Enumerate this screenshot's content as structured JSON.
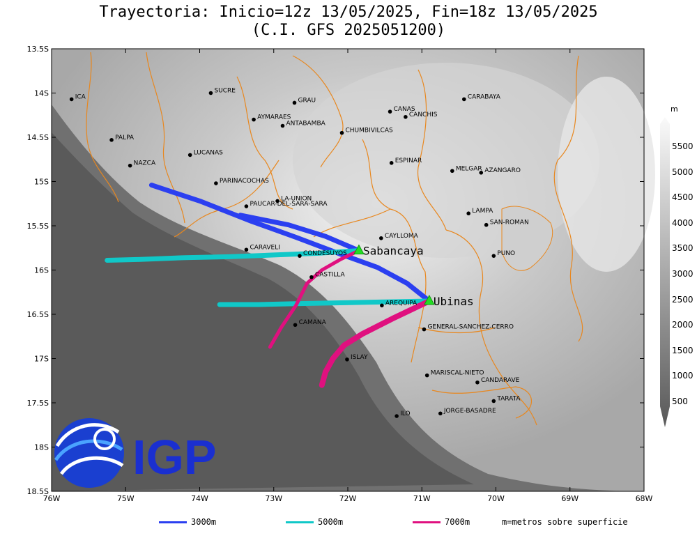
{
  "title_line1": "Trayectoria: Inicio=12z 13/05/2025, Fin=18z 13/05/2025",
  "title_line2": "(C.I. GFS 2025051200)",
  "logo_text": "IGP",
  "units_label": "m",
  "colorbar_labels": [
    "5500",
    "5000",
    "4500",
    "4000",
    "3500",
    "3000",
    "2500",
    "2000",
    "1500",
    "1000",
    "500"
  ],
  "lat_ticks": [
    "13.5S",
    "14S",
    "14.5S",
    "15S",
    "15.5S",
    "16S",
    "16.5S",
    "17S",
    "17.5S",
    "18S",
    "18.5S"
  ],
  "lon_ticks": [
    "76W",
    "75W",
    "74W",
    "73W",
    "72W",
    "71W",
    "70W",
    "69W",
    "68W"
  ],
  "places": [
    {
      "name": "ICA",
      "lon": -75.73,
      "lat": -14.07
    },
    {
      "name": "SUCRE",
      "lon": -73.85,
      "lat": -14.0
    },
    {
      "name": "GRAU",
      "lon": -72.72,
      "lat": -14.11
    },
    {
      "name": "AYMARAES",
      "lon": -73.27,
      "lat": -14.3
    },
    {
      "name": "ANTABAMBA",
      "lon": -72.88,
      "lat": -14.37
    },
    {
      "name": "CANAS",
      "lon": -71.43,
      "lat": -14.21
    },
    {
      "name": "CANCHIS",
      "lon": -71.22,
      "lat": -14.27
    },
    {
      "name": "CARABAYA",
      "lon": -70.43,
      "lat": -14.07
    },
    {
      "name": "CHUMBIVILCAS",
      "lon": -72.08,
      "lat": -14.45
    },
    {
      "name": "PALPA",
      "lon": -75.19,
      "lat": -14.53
    },
    {
      "name": "LUCANAS",
      "lon": -74.13,
      "lat": -14.7
    },
    {
      "name": "NAZCA",
      "lon": -74.94,
      "lat": -14.82
    },
    {
      "name": "ESPINAR",
      "lon": -71.41,
      "lat": -14.79
    },
    {
      "name": "MELGAR",
      "lon": -70.59,
      "lat": -14.88
    },
    {
      "name": "AZANGARO",
      "lon": -70.2,
      "lat": -14.9
    },
    {
      "name": "PARINACOCHAS",
      "lon": -73.78,
      "lat": -15.02
    },
    {
      "name": "LA-UNION",
      "lon": -72.95,
      "lat": -15.22
    },
    {
      "name": "PAUCAR-DEL-SARA-SARA",
      "lon": -73.37,
      "lat": -15.28
    },
    {
      "name": "LAMPA",
      "lon": -70.37,
      "lat": -15.36
    },
    {
      "name": "SAN-ROMAN",
      "lon": -70.13,
      "lat": -15.49
    },
    {
      "name": "CAYLLOMA",
      "lon": -71.55,
      "lat": -15.64
    },
    {
      "name": "CARAVELI",
      "lon": -73.37,
      "lat": -15.77
    },
    {
      "name": "CONDESUYOS",
      "lon": -72.65,
      "lat": -15.84
    },
    {
      "name": "PUNO",
      "lon": -70.03,
      "lat": -15.84
    },
    {
      "name": "CASTILLA",
      "lon": -72.49,
      "lat": -16.08
    },
    {
      "name": "AREQUIPA",
      "lon": -71.54,
      "lat": -16.4
    },
    {
      "name": "CAMANA",
      "lon": -72.71,
      "lat": -16.62
    },
    {
      "name": "GENERAL-SANCHEZ-CERRO",
      "lon": -70.97,
      "lat": -16.67
    },
    {
      "name": "ISLAY",
      "lon": -72.01,
      "lat": -17.01
    },
    {
      "name": "MARISCAL-NIETO",
      "lon": -70.93,
      "lat": -17.19
    },
    {
      "name": "CANDARAVE",
      "lon": -70.25,
      "lat": -17.27
    },
    {
      "name": "TARATA",
      "lon": -70.03,
      "lat": -17.48
    },
    {
      "name": "JORGE-BASADRE",
      "lon": -70.75,
      "lat": -17.62
    },
    {
      "name": "ILO",
      "lon": -71.34,
      "lat": -17.65
    }
  ],
  "volcanoes": [
    {
      "name": "Sabancaya",
      "lon": -71.85,
      "lat": -15.78
    },
    {
      "name": "Ubinas",
      "lon": -70.9,
      "lat": -16.35
    }
  ],
  "trajectories": [
    {
      "level": "3000m",
      "color": "#2b3ff0",
      "width": 7,
      "points": [
        [
          -70.9,
          -16.35
        ],
        [
          -71.2,
          -16.15
        ],
        [
          -71.6,
          -15.97
        ],
        [
          -72.1,
          -15.82
        ],
        [
          -72.7,
          -15.63
        ],
        [
          -73.3,
          -15.45
        ],
        [
          -74.0,
          -15.22
        ],
        [
          -74.65,
          -15.04
        ]
      ]
    },
    {
      "level": "3000m",
      "color": "#2b3ff0",
      "width": 7,
      "points": [
        [
          -71.85,
          -15.78
        ],
        [
          -72.3,
          -15.62
        ],
        [
          -72.8,
          -15.49
        ],
        [
          -73.45,
          -15.38
        ]
      ]
    },
    {
      "level": "5000m",
      "color": "#10c8c8",
      "width": 7,
      "points": [
        [
          -71.85,
          -15.78
        ],
        [
          -72.4,
          -15.81
        ],
        [
          -73.0,
          -15.83
        ],
        [
          -73.6,
          -15.85
        ],
        [
          -74.2,
          -15.86
        ],
        [
          -74.8,
          -15.88
        ],
        [
          -75.25,
          -15.89
        ]
      ]
    },
    {
      "level": "5000m",
      "color": "#10c8c8",
      "width": 7,
      "points": [
        [
          -70.9,
          -16.35
        ],
        [
          -71.5,
          -16.36
        ],
        [
          -72.1,
          -16.37
        ],
        [
          -72.7,
          -16.38
        ],
        [
          -73.2,
          -16.39
        ],
        [
          -73.73,
          -16.39
        ]
      ]
    },
    {
      "level": "7000m",
      "color": "#e0107f",
      "width": 5,
      "points": [
        [
          -71.85,
          -15.78
        ],
        [
          -72.1,
          -15.88
        ],
        [
          -72.35,
          -16.0
        ],
        [
          -72.55,
          -16.15
        ],
        [
          -72.7,
          -16.4
        ],
        [
          -72.9,
          -16.65
        ],
        [
          -73.05,
          -16.87
        ]
      ]
    },
    {
      "level": "7000m",
      "color": "#e0107f",
      "width": 8,
      "points": [
        [
          -70.9,
          -16.35
        ],
        [
          -71.4,
          -16.55
        ],
        [
          -71.8,
          -16.72
        ],
        [
          -72.05,
          -16.85
        ],
        [
          -72.2,
          -17.0
        ],
        [
          -72.3,
          -17.15
        ],
        [
          -72.35,
          -17.3
        ]
      ]
    }
  ],
  "legend": [
    {
      "label": "3000m",
      "color": "#2b3ff0"
    },
    {
      "label": "5000m",
      "color": "#10c8c8"
    },
    {
      "label": "7000m",
      "color": "#e0107f"
    }
  ],
  "legend_note": "m=metros sobre superficie"
}
